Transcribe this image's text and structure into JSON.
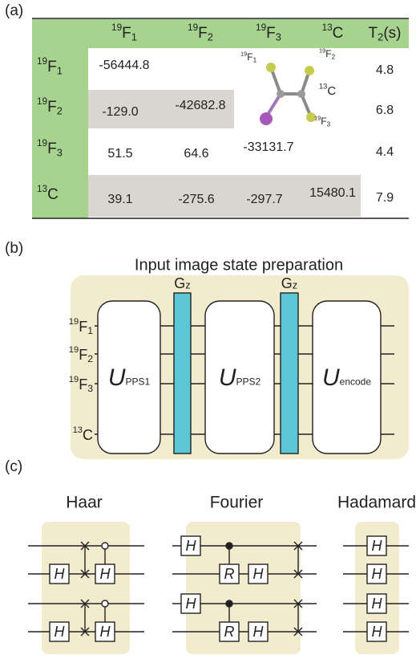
{
  "panel_labels": [
    "(a)",
    "(b)",
    "(c)"
  ],
  "table": {
    "header": [
      {
        "mass": "19",
        "symbol": "F",
        "index": "1"
      },
      {
        "mass": "19",
        "symbol": "F",
        "index": "2"
      },
      {
        "mass": "19",
        "symbol": "F",
        "index": "3"
      },
      {
        "mass": "13",
        "symbol": "C"
      },
      {
        "symbol": "T",
        "index": "2",
        "suffix": "(s)"
      }
    ],
    "rows": [
      {
        "label": {
          "mass": "19",
          "symbol": "F",
          "index": "1"
        },
        "cells": [
          "-56444.8"
        ],
        "t2": "4.8"
      },
      {
        "label": {
          "mass": "19",
          "symbol": "F",
          "index": "2"
        },
        "cells": [
          "-129.0",
          "-42682.8"
        ],
        "t2": "6.8"
      },
      {
        "label": {
          "mass": "19",
          "symbol": "F",
          "index": "3"
        },
        "cells": [
          "51.5",
          "64.6",
          "-33131.7"
        ],
        "t2": "4.4"
      },
      {
        "label": {
          "mass": "13",
          "symbol": "C"
        },
        "cells": [
          "39.1",
          "-275.6",
          "-297.7",
          "15480.1"
        ],
        "t2": "7.9"
      }
    ]
  },
  "molecule": {
    "labels": [
      {
        "mass": "19",
        "symbol": "F",
        "index": "1"
      },
      {
        "mass": "19",
        "symbol": "F",
        "index": "2"
      },
      {
        "mass": "13",
        "symbol": "C"
      },
      {
        "mass": "19",
        "symbol": "F",
        "index": "3"
      }
    ]
  },
  "circuit_b": {
    "title": "Input image state preparation",
    "wires": [
      {
        "mass": "19",
        "symbol": "F",
        "index": "1"
      },
      {
        "mass": "19",
        "symbol": "F",
        "index": "2"
      },
      {
        "mass": "19",
        "symbol": "F",
        "index": "3"
      },
      {
        "mass": "13",
        "symbol": "C"
      }
    ],
    "blocks": [
      {
        "symbol": "U",
        "subscript": "PPS1"
      },
      {
        "symbol": "U",
        "subscript": "PPS2"
      },
      {
        "symbol": "U",
        "subscript": "encode"
      }
    ],
    "gz": [
      {
        "symbol": "G",
        "subscript": "z"
      },
      {
        "symbol": "G",
        "subscript": "z"
      }
    ]
  },
  "circuit_c": [
    {
      "title": "Haar",
      "gates": [
        "H",
        "H",
        "H",
        "H"
      ]
    },
    {
      "title": "Fourier",
      "gates": [
        "H",
        "R",
        "H",
        "H",
        "R",
        "H"
      ]
    },
    {
      "title": "Hadamard",
      "gates": [
        "H",
        "H",
        "H",
        "H"
      ]
    }
  ]
}
